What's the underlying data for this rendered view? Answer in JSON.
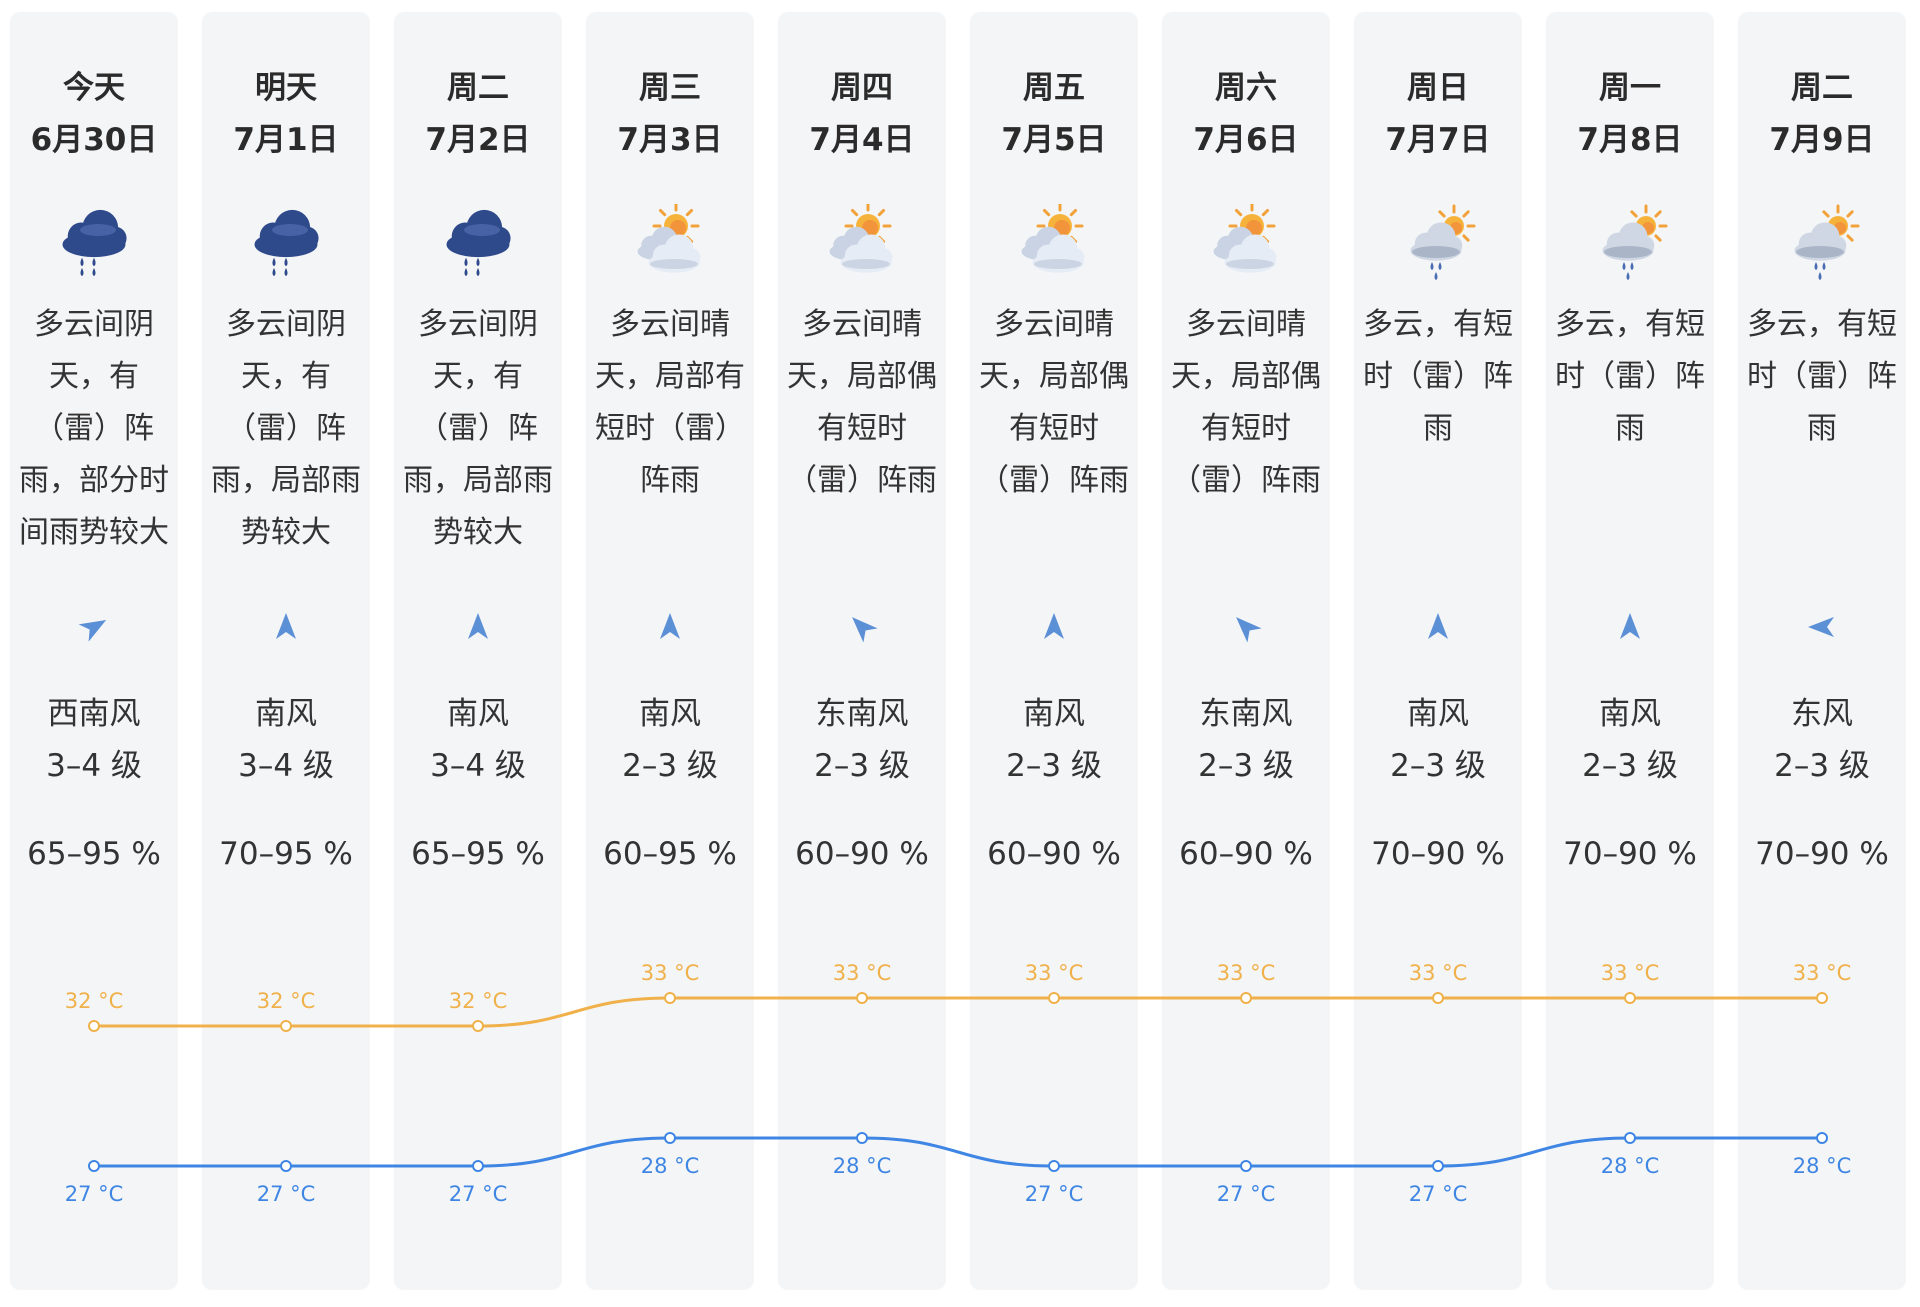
{
  "colors": {
    "high_line": "#f0b04a",
    "low_line": "#3f86e4",
    "column_bg": "#f4f5f7"
  },
  "days": [
    {
      "day": "今天",
      "date": "6月30日",
      "icon": "rain-cloud-icon",
      "desc": [
        "多云间阴",
        "天，有",
        "（雷）阵",
        "雨，部分时",
        "间雨势较大"
      ],
      "wind_dir": "西南风",
      "wind_level": "3–4 级",
      "humidity": "65–95 %",
      "wind_arrow": "arrow-northeast-icon"
    },
    {
      "day": "明天",
      "date": "7月1日",
      "icon": "rain-cloud-icon",
      "desc": [
        "多云间阴",
        "天，有",
        "（雷）阵",
        "雨，局部雨",
        "势较大"
      ],
      "wind_dir": "南风",
      "wind_level": "3–4 级",
      "humidity": "70–95 %",
      "wind_arrow": "arrow-north-icon"
    },
    {
      "day": "周二",
      "date": "7月2日",
      "icon": "rain-cloud-icon",
      "desc": [
        "多云间阴",
        "天，有",
        "（雷）阵",
        "雨，局部雨",
        "势较大"
      ],
      "wind_dir": "南风",
      "wind_level": "3–4 级",
      "humidity": "65–95 %",
      "wind_arrow": "arrow-north-icon"
    },
    {
      "day": "周三",
      "date": "7月3日",
      "icon": "sun-cloud-icon",
      "desc": [
        "多云间晴",
        "天，局部有",
        "短时（雷）",
        "阵雨"
      ],
      "wind_dir": "南风",
      "wind_level": "2–3 级",
      "humidity": "60–95 %",
      "wind_arrow": "arrow-north-icon"
    },
    {
      "day": "周四",
      "date": "7月4日",
      "icon": "sun-cloud-icon",
      "desc": [
        "多云间晴",
        "天，局部偶",
        "有短时",
        "（雷）阵雨"
      ],
      "wind_dir": "东南风",
      "wind_level": "2–3 级",
      "humidity": "60–90 %",
      "wind_arrow": "arrow-northwest-icon"
    },
    {
      "day": "周五",
      "date": "7月5日",
      "icon": "sun-cloud-icon",
      "desc": [
        "多云间晴",
        "天，局部偶",
        "有短时",
        "（雷）阵雨"
      ],
      "wind_dir": "南风",
      "wind_level": "2–3 级",
      "humidity": "60–90 %",
      "wind_arrow": "arrow-north-icon"
    },
    {
      "day": "周六",
      "date": "7月6日",
      "icon": "sun-cloud-icon",
      "desc": [
        "多云间晴",
        "天，局部偶",
        "有短时",
        "（雷）阵雨"
      ],
      "wind_dir": "东南风",
      "wind_level": "2–3 级",
      "humidity": "60–90 %",
      "wind_arrow": "arrow-northwest-icon"
    },
    {
      "day": "周日",
      "date": "7月7日",
      "icon": "sun-rain-cloud-icon",
      "desc": [
        "多云，有短",
        "时（雷）阵",
        "雨"
      ],
      "wind_dir": "南风",
      "wind_level": "2–3 级",
      "humidity": "70–90 %",
      "wind_arrow": "arrow-north-icon"
    },
    {
      "day": "周一",
      "date": "7月8日",
      "icon": "sun-rain-cloud-icon",
      "desc": [
        "多云，有短",
        "时（雷）阵",
        "雨"
      ],
      "wind_dir": "南风",
      "wind_level": "2–3 级",
      "humidity": "70–90 %",
      "wind_arrow": "arrow-north-icon"
    },
    {
      "day": "周二",
      "date": "7月9日",
      "icon": "sun-rain-cloud-icon",
      "desc": [
        "多云，有短",
        "时（雷）阵",
        "雨"
      ],
      "wind_dir": "东风",
      "wind_level": "2–3 级",
      "humidity": "70–90 %",
      "wind_arrow": "arrow-west-icon"
    }
  ],
  "chart_data": {
    "type": "line",
    "categories": [
      "6月30日",
      "7月1日",
      "7月2日",
      "7月3日",
      "7月4日",
      "7月5日",
      "7月6日",
      "7月7日",
      "7月8日",
      "7月9日"
    ],
    "series": [
      {
        "values": [
          32,
          32,
          32,
          33,
          33,
          33,
          33,
          33,
          33,
          33
        ],
        "labels": [
          "32 °C",
          "32 °C",
          "32 °C",
          "33 °C",
          "33 °C",
          "33 °C",
          "33 °C",
          "33 °C",
          "33 °C",
          "33 °C"
        ]
      },
      {
        "values": [
          27,
          27,
          27,
          28,
          28,
          27,
          27,
          27,
          28,
          28
        ],
        "labels": [
          "27 °C",
          "27 °C",
          "27 °C",
          "28 °C",
          "28 °C",
          "27 °C",
          "27 °C",
          "27 °C",
          "28 °C",
          "28 °C"
        ]
      }
    ],
    "grid": false
  }
}
